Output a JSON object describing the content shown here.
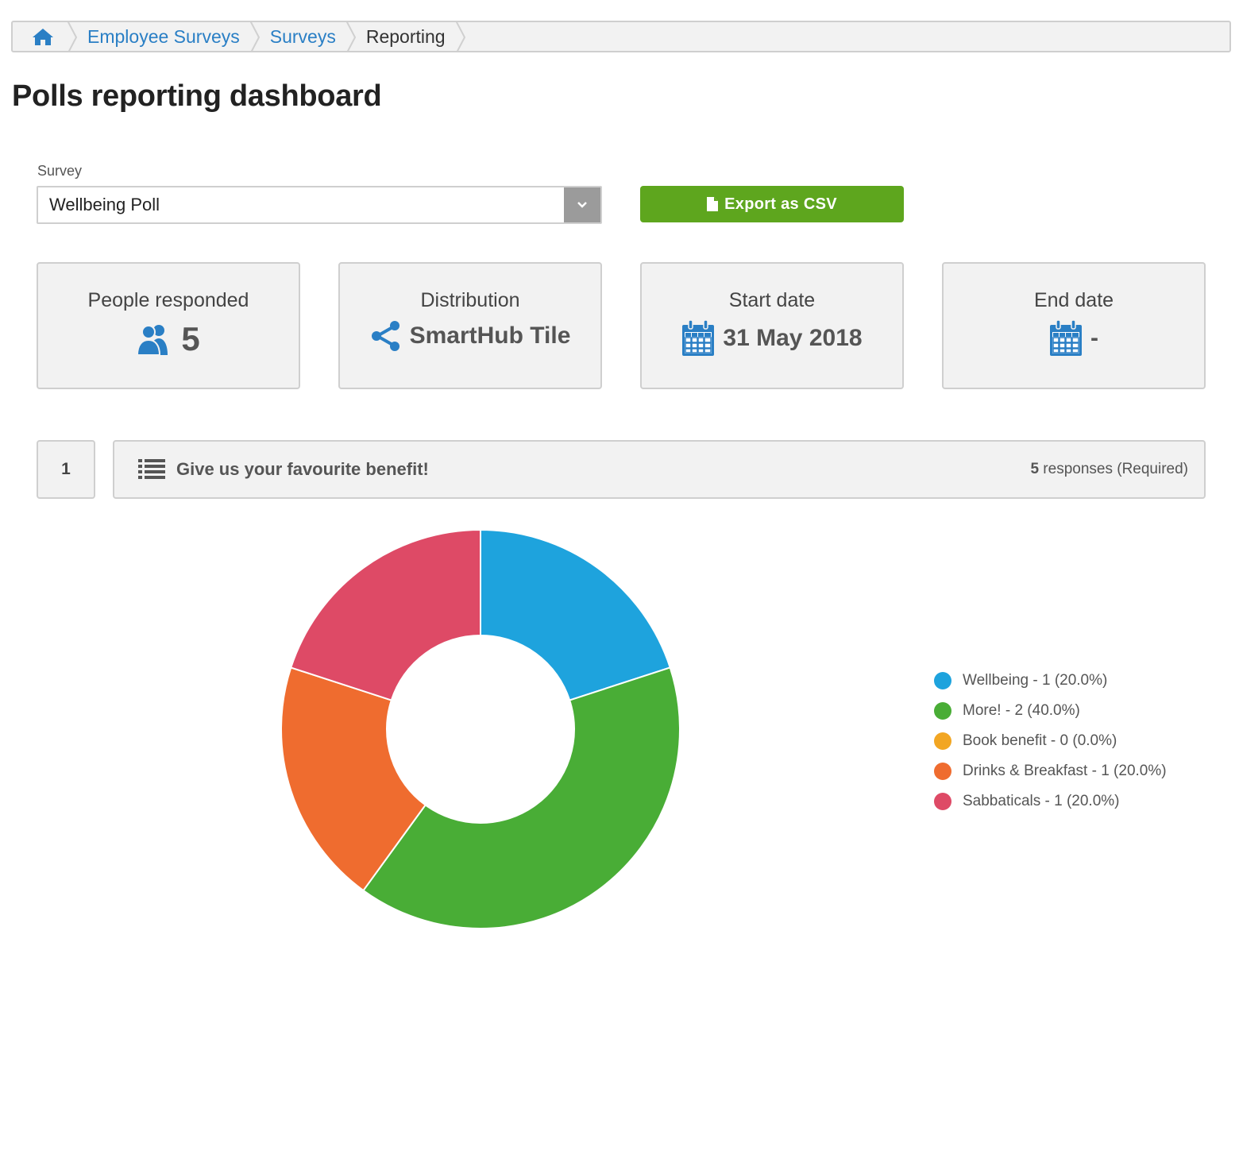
{
  "breadcrumb": {
    "items": [
      {
        "label": "Employee Surveys"
      },
      {
        "label": "Surveys"
      }
    ],
    "current": "Reporting"
  },
  "page": {
    "title": "Polls reporting dashboard"
  },
  "survey": {
    "label": "Survey",
    "selected": "Wellbeing Poll"
  },
  "export": {
    "label": "Export as CSV"
  },
  "stats": {
    "responded": {
      "label": "People responded",
      "value": "5"
    },
    "distribution": {
      "label": "Distribution",
      "value": "SmartHub Tile"
    },
    "start": {
      "label": "Start date",
      "value": "31 May 2018"
    },
    "end": {
      "label": "End date",
      "value": "-"
    }
  },
  "question": {
    "number": "1",
    "title": "Give us your favourite benefit!",
    "responses_count": "5",
    "responses_suffix": "responses (Required)"
  },
  "colors": {
    "link": "#2a7fc5",
    "export_green": "#5ea61e",
    "icon_blue": "#2a7fc5"
  },
  "chart_data": {
    "type": "pie",
    "donut": true,
    "categories": [
      "Wellbeing",
      "More!",
      "Book benefit",
      "Drinks & Breakfast",
      "Sabbaticals"
    ],
    "values": [
      1,
      2,
      0,
      1,
      1
    ],
    "colors": [
      "#1ea3dd",
      "#49ad36",
      "#f2a623",
      "#ef6c2f",
      "#de4a66"
    ],
    "legend_labels": [
      "Wellbeing - 1 (20.0%)",
      "More! - 2 (40.0%)",
      "Book benefit - 0 (0.0%)",
      "Drinks & Breakfast - 1 (20.0%)",
      "Sabbaticals - 1 (20.0%)"
    ],
    "legend_position": "right"
  }
}
